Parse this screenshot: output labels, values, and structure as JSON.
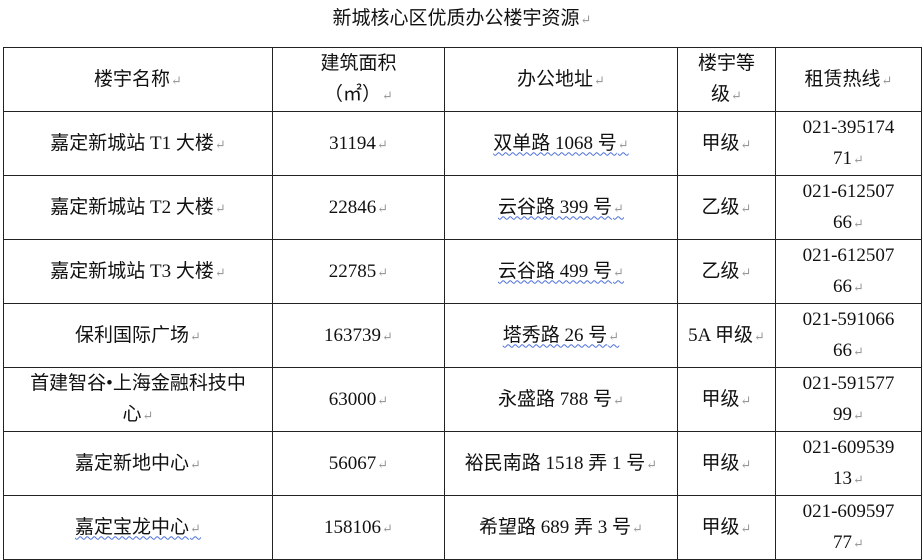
{
  "title": "新城核心区优质办公楼宇资源",
  "table": {
    "headers": [
      "楼宇名称",
      "建筑面积（㎡）",
      "办公地址",
      "楼宇等级",
      "租赁热线"
    ],
    "rows": [
      {
        "name": "嘉定新城站 T1 大楼",
        "area": "31194",
        "address": "双单路 1068 号",
        "grade": "甲级",
        "hotline": "021-39517471"
      },
      {
        "name": "嘉定新城站 T2 大楼",
        "area": "22846",
        "address": "云谷路 399 号",
        "grade": "乙级",
        "hotline": "021-61250766"
      },
      {
        "name": "嘉定新城站 T3 大楼",
        "area": "22785",
        "address": "云谷路 499 号",
        "grade": "乙级",
        "hotline": "021-61250766"
      },
      {
        "name": "保利国际广场",
        "area": "163739",
        "address": "塔秀路 26 号",
        "grade": "5A 甲级",
        "hotline": "021-59106666"
      },
      {
        "name": "首建智谷•上海金融科技中心",
        "area": "63000",
        "address": "永盛路 788 号",
        "grade": "甲级",
        "hotline": "021-59157799"
      },
      {
        "name": "嘉定新地中心",
        "area": "56067",
        "address": "裕民南路 1518 弄 1 号",
        "grade": "甲级",
        "hotline": "021-60953913"
      },
      {
        "name": "嘉定宝龙中心",
        "area": "158106",
        "address": "希望路 689 弄 3 号",
        "grade": "甲级",
        "hotline": "021-60959777"
      }
    ]
  }
}
